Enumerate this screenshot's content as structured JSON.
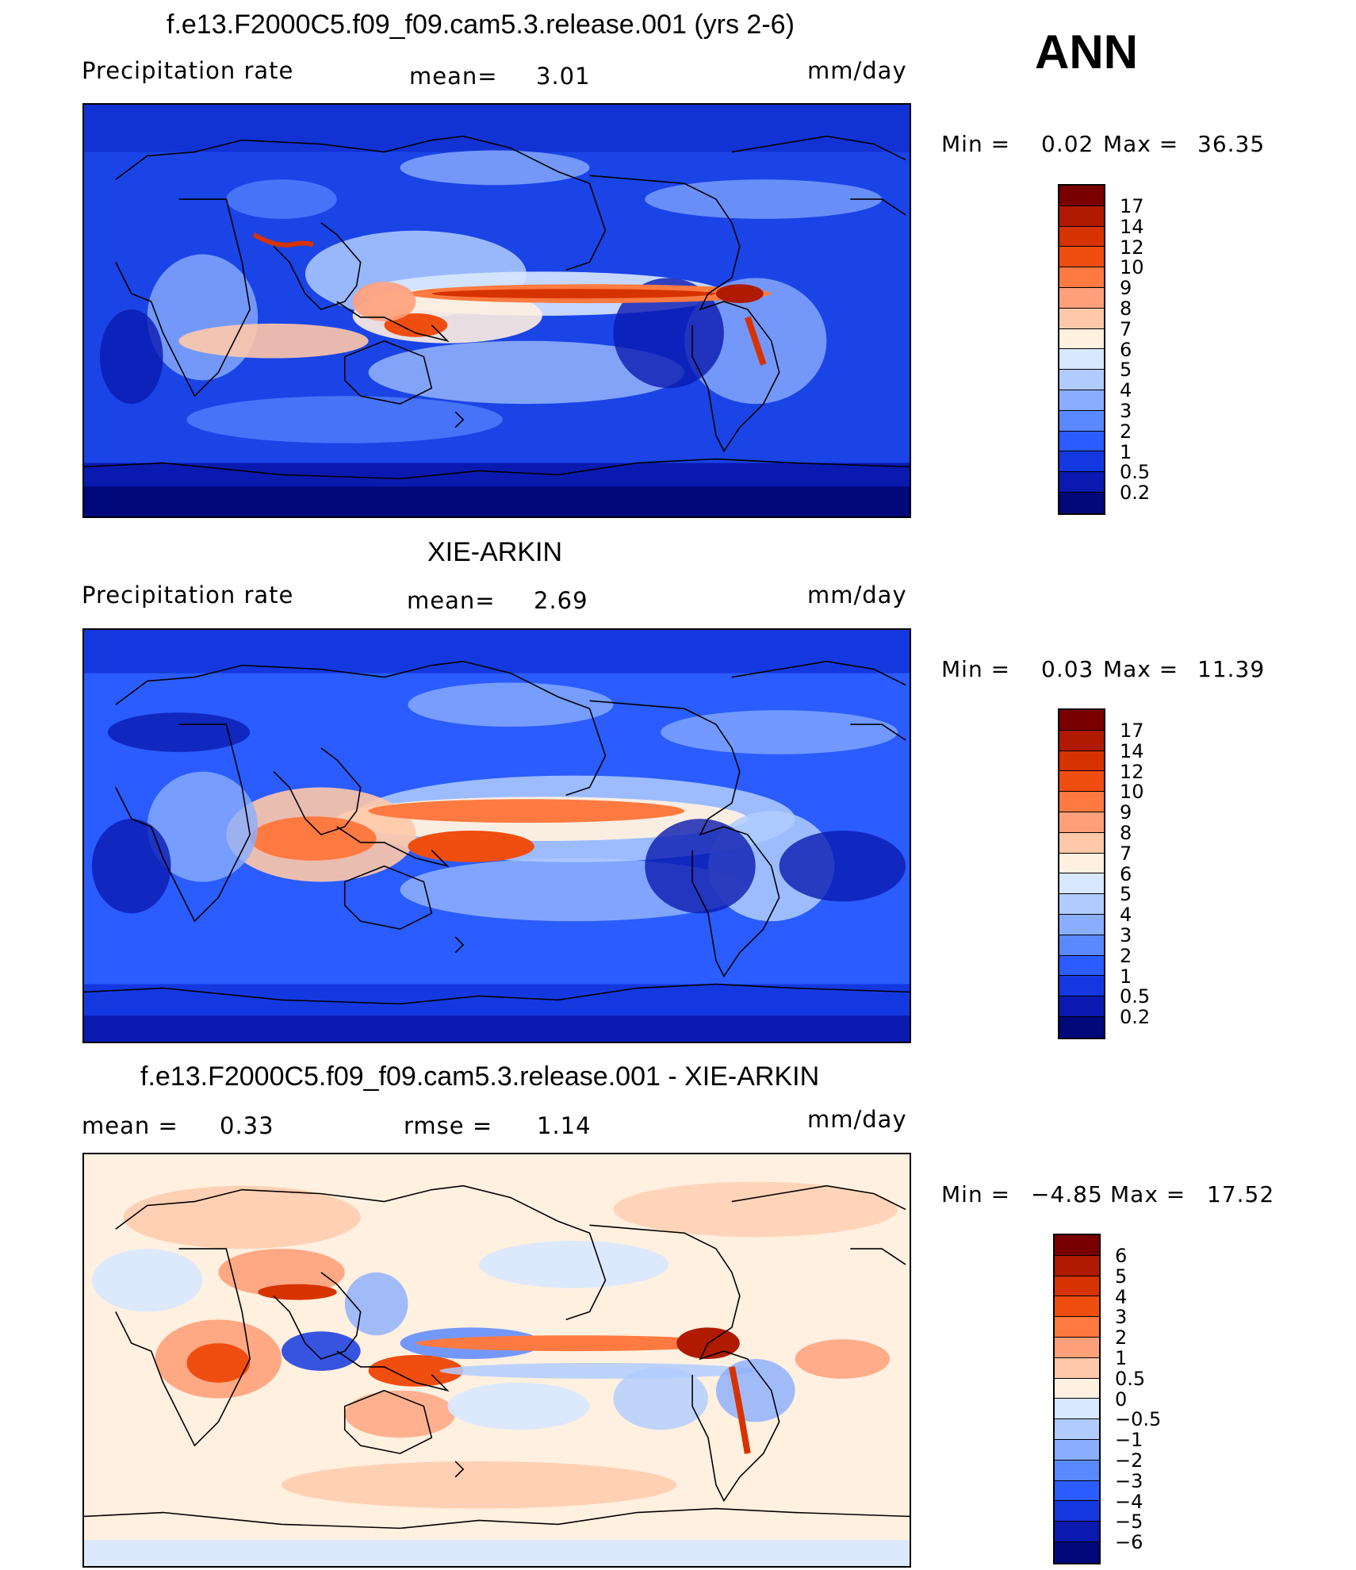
{
  "header": {
    "season": "ANN"
  },
  "panels": [
    {
      "title": "f.e13.F2000C5.f09_f09.cam5.3.release.001 (yrs 2-6)",
      "variable": "Precipitation  rate",
      "stat1_label": "mean=",
      "stat1_value": "3.01",
      "units": "mm/day",
      "min_label": "Min  =",
      "min_value": "0.02",
      "max_label": "Max  =",
      "max_value": "36.35",
      "colorbar": [
        "17",
        "14",
        "12",
        "10",
        "9",
        "8",
        "7",
        "6",
        "5",
        "4",
        "3",
        "2",
        "1",
        "0.5",
        "0.2"
      ]
    },
    {
      "title": "XIE-ARKIN",
      "variable": "Precipitation  rate",
      "stat1_label": "mean=",
      "stat1_value": "2.69",
      "units": "mm/day",
      "min_label": "Min  =",
      "min_value": "0.03",
      "max_label": "Max  =",
      "max_value": "11.39",
      "colorbar": [
        "17",
        "14",
        "12",
        "10",
        "9",
        "8",
        "7",
        "6",
        "5",
        "4",
        "3",
        "2",
        "1",
        "0.5",
        "0.2"
      ]
    },
    {
      "title": "f.e13.F2000C5.f09_f09.cam5.3.release.001 - XIE-ARKIN",
      "stat1_label": "mean  =",
      "stat1_value": "0.33",
      "stat2_label": "rmse  =",
      "stat2_value": "1.14",
      "units": "mm/day",
      "min_label": "Min  =",
      "min_value": "−4.85",
      "max_label": "Max  =",
      "max_value": "17.52",
      "colorbar": [
        "6",
        "5",
        "4",
        "3",
        "2",
        "1",
        "0.5",
        "0",
        "−0.5",
        "−1",
        "−2",
        "−3",
        "−4",
        "−5",
        "−6"
      ]
    }
  ],
  "colors": {
    "precip_scale": [
      "#7a0000",
      "#b01a00",
      "#d63300",
      "#f04d10",
      "#ff7a40",
      "#ffa07a",
      "#ffc8a8",
      "#fff0e0",
      "#d8e8ff",
      "#b0ccff",
      "#8aaeff",
      "#5a88ff",
      "#2a5cff",
      "#1438e0",
      "#0a1ab0",
      "#00087a"
    ],
    "diff_scale": [
      "#7a0000",
      "#b01a00",
      "#d63300",
      "#f04d10",
      "#ff7a40",
      "#ffa07a",
      "#ffc8a8",
      "#fff0e0",
      "#d8e8ff",
      "#b0ccff",
      "#8aaeff",
      "#5a88ff",
      "#2a5cff",
      "#1438e0",
      "#0a1ab0",
      "#00087a"
    ]
  }
}
